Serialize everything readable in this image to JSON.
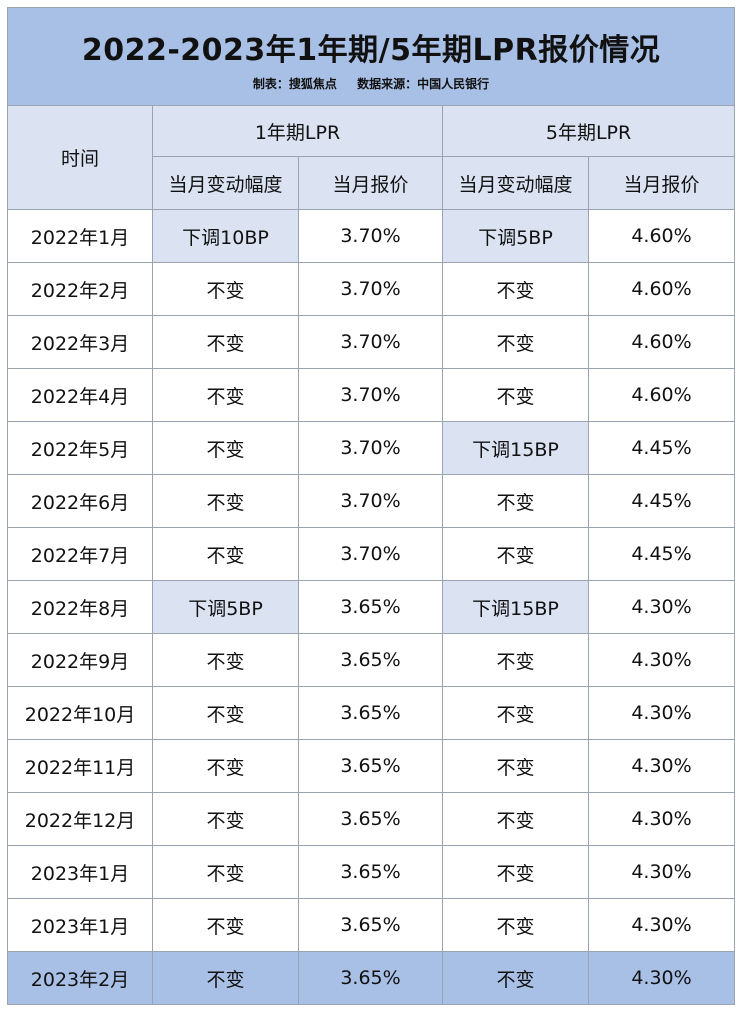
{
  "title": "2022-2023年1年期/5年期LPR报价情况",
  "subtitle": {
    "maker": "制表：搜狐焦点",
    "source": "数据来源：中国人民银行"
  },
  "headers": {
    "time": "时间",
    "group1": "1年期LPR",
    "group2": "5年期LPR",
    "change1": "当月变动幅度",
    "quote1": "当月报价",
    "change5": "当月变动幅度",
    "quote5": "当月报价"
  },
  "rows": [
    [
      "2022年1月",
      "下调10BP",
      "3.70%",
      "下调5BP",
      "4.60%"
    ],
    [
      "2022年2月",
      "不变",
      "3.70%",
      "不变",
      "4.60%"
    ],
    [
      "2022年3月",
      "不变",
      "3.70%",
      "不变",
      "4.60%"
    ],
    [
      "2022年4月",
      "不变",
      "3.70%",
      "不变",
      "4.60%"
    ],
    [
      "2022年5月",
      "不变",
      "3.70%",
      "下调15BP",
      "4.45%"
    ],
    [
      "2022年6月",
      "不变",
      "3.70%",
      "不变",
      "4.45%"
    ],
    [
      "2022年7月",
      "不变",
      "3.70%",
      "不变",
      "4.45%"
    ],
    [
      "2022年8月",
      "下调5BP",
      "3.65%",
      "下调15BP",
      "4.30%"
    ],
    [
      "2022年9月",
      "不变",
      "3.65%",
      "不变",
      "4.30%"
    ],
    [
      "2022年10月",
      "不变",
      "3.65%",
      "不变",
      "4.30%"
    ],
    [
      "2022年11月",
      "不变",
      "3.65%",
      "不变",
      "4.30%"
    ],
    [
      "2022年12月",
      "不变",
      "3.65%",
      "不变",
      "4.30%"
    ],
    [
      "2023年1月",
      "不变",
      "3.65%",
      "不变",
      "4.30%"
    ],
    [
      "2023年1月",
      "不变",
      "3.65%",
      "不变",
      "4.30%"
    ],
    [
      "2023年2月",
      "不变",
      "3.65%",
      "不变",
      "4.30%"
    ]
  ],
  "colors": {
    "header_blue": "#a9c0e6",
    "highlight": "#dbe3f3",
    "border": "#9aa3b0"
  }
}
